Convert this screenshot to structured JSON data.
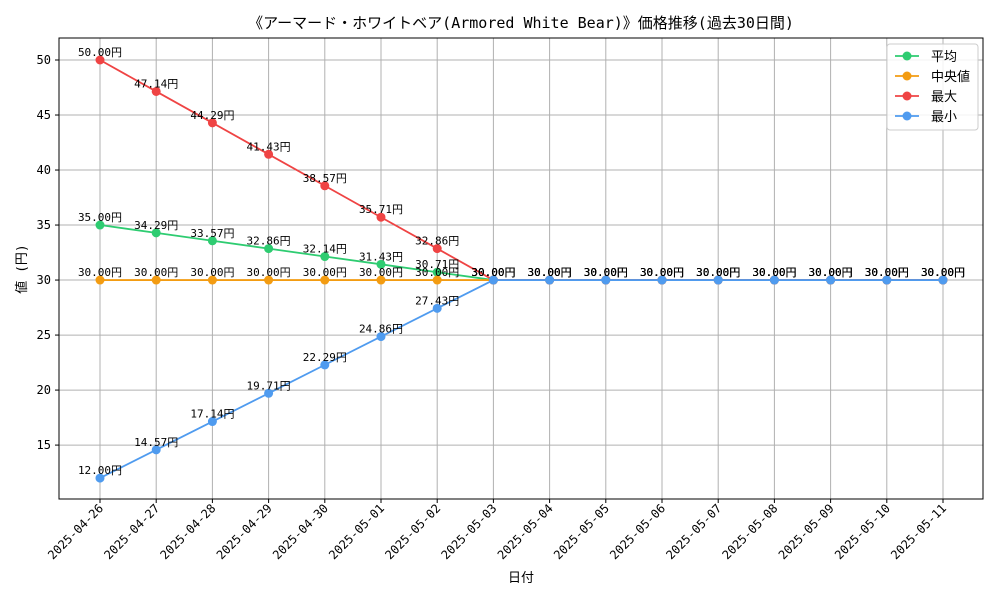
{
  "chart_data": {
    "type": "line",
    "title": "《アーマード・ホワイトベア(Armored White Bear)》価格推移(過去30日間)",
    "xlabel": "日付",
    "ylabel": "値 (円)",
    "grid": true,
    "legend_position": "top-right",
    "ylim": [
      10.1,
      52.0
    ],
    "yticks": [
      15,
      20,
      25,
      30,
      35,
      40,
      45,
      50
    ],
    "categories": [
      "2025-04-26",
      "2025-04-27",
      "2025-04-28",
      "2025-04-29",
      "2025-04-30",
      "2025-05-01",
      "2025-05-02",
      "2025-05-03",
      "2025-05-04",
      "2025-05-05",
      "2025-05-06",
      "2025-05-07",
      "2025-05-08",
      "2025-05-09",
      "2025-05-10",
      "2025-05-11"
    ],
    "series": [
      {
        "name": "平均",
        "color": "#2ecc71",
        "values": [
          35.0,
          34.29,
          33.57,
          32.86,
          32.14,
          31.43,
          30.71,
          30.0,
          30.0,
          30.0,
          30.0,
          30.0,
          30.0,
          30.0,
          30.0,
          30.0
        ],
        "labels": [
          "35.00円",
          "34.29円",
          "33.57円",
          "32.86円",
          "32.14円",
          "31.43円",
          "30.71円",
          "30.00円",
          "30.00円",
          "30.00円",
          "30.00円",
          "30.00円",
          "30.00円",
          "30.00円",
          "30.00円",
          "30.00円"
        ]
      },
      {
        "name": "中央値",
        "color": "#f39c12",
        "values": [
          30.0,
          30.0,
          30.0,
          30.0,
          30.0,
          30.0,
          30.0,
          30.0,
          30.0,
          30.0,
          30.0,
          30.0,
          30.0,
          30.0,
          30.0,
          30.0
        ],
        "labels": [
          "30.00円",
          "30.00円",
          "30.00円",
          "30.00円",
          "30.00円",
          "30.00円",
          "30.00円",
          "30.00円",
          "30.00円",
          "30.00円",
          "30.00円",
          "30.00円",
          "30.00円",
          "30.00円",
          "30.00円",
          "30.00円"
        ]
      },
      {
        "name": "最大",
        "color": "#ef4444",
        "values": [
          50.0,
          47.14,
          44.29,
          41.43,
          38.57,
          35.71,
          32.86,
          30.0,
          30.0,
          30.0,
          30.0,
          30.0,
          30.0,
          30.0,
          30.0,
          30.0
        ],
        "labels": [
          "50.00円",
          "47.14円",
          "44.29円",
          "41.43円",
          "38.57円",
          "35.71円",
          "32.86円",
          "30.00円",
          "30.00円",
          "30.00円",
          "30.00円",
          "30.00円",
          "30.00円",
          "30.00円",
          "30.00円",
          "30.00円"
        ]
      },
      {
        "name": "最小",
        "color": "#4f9bef",
        "values": [
          12.0,
          14.57,
          17.14,
          19.71,
          22.29,
          24.86,
          27.43,
          30.0,
          30.0,
          30.0,
          30.0,
          30.0,
          30.0,
          30.0,
          30.0,
          30.0
        ],
        "labels": [
          "12.00円",
          "14.57円",
          "17.14円",
          "19.71円",
          "22.29円",
          "24.86円",
          "27.43円",
          "30.00円",
          "30.00円",
          "30.00円",
          "30.00円",
          "30.00円",
          "30.00円",
          "30.00円",
          "30.00円",
          "30.00円"
        ]
      }
    ]
  }
}
